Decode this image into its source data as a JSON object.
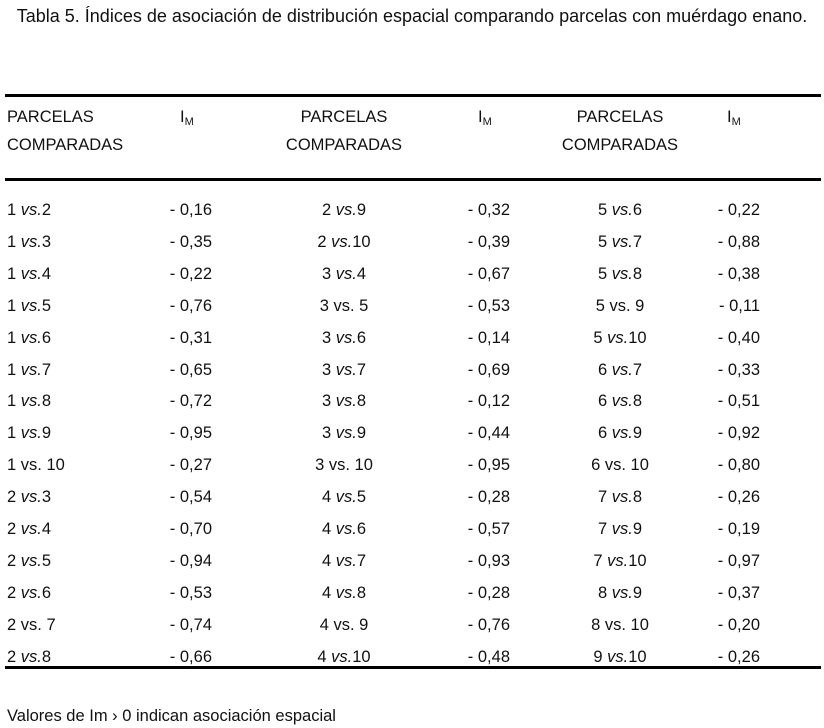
{
  "title": "Tabla 5. Índices de asociación de distribución espacial comparando parcelas con muérdago enano.",
  "headers": {
    "pairs_line1": "PARCELAS",
    "pairs_line2": "COMPARADAS",
    "index_main": "I",
    "index_sub": "M"
  },
  "groups": [
    [
      {
        "a": "1 ",
        "vs": "vs.",
        "b": "2",
        "italic": true,
        "im": "- 0,16"
      },
      {
        "a": "1 ",
        "vs": "vs.",
        "b": "3",
        "italic": true,
        "im": "- 0,35"
      },
      {
        "a": "1 ",
        "vs": "vs.",
        "b": "4",
        "italic": true,
        "im": "- 0,22"
      },
      {
        "a": "1 ",
        "vs": "vs.",
        "b": "5",
        "italic": true,
        "im": "- 0,76"
      },
      {
        "a": "1 ",
        "vs": "vs.",
        "b": "6",
        "italic": true,
        "im": "- 0,31"
      },
      {
        "a": "1 ",
        "vs": "vs.",
        "b": "7",
        "italic": true,
        "im": "- 0,65"
      },
      {
        "a": "1 ",
        "vs": "vs.",
        "b": "8",
        "italic": true,
        "im": "- 0,72"
      },
      {
        "a": "1 ",
        "vs": "vs.",
        "b": "9",
        "italic": true,
        "im": "- 0,95"
      },
      {
        "a": "1 ",
        "vs": "vs. ",
        "b": "10",
        "italic": false,
        "im": "- 0,27"
      },
      {
        "a": "2 ",
        "vs": "vs.",
        "b": "3",
        "italic": true,
        "im": "- 0,54"
      },
      {
        "a": "2 ",
        "vs": "vs.",
        "b": "4",
        "italic": true,
        "im": "- 0,70"
      },
      {
        "a": "2 ",
        "vs": "vs.",
        "b": "5",
        "italic": true,
        "im": "- 0,94"
      },
      {
        "a": "2 ",
        "vs": "vs.",
        "b": "6",
        "italic": true,
        "im": "- 0,53"
      },
      {
        "a": "2 ",
        "vs": "vs. ",
        "b": "7",
        "italic": false,
        "im": "- 0,74"
      },
      {
        "a": "2 ",
        "vs": "vs.",
        "b": "8",
        "italic": true,
        "im": "- 0,66"
      }
    ],
    [
      {
        "a": "2 ",
        "vs": "vs.",
        "b": "9",
        "italic": true,
        "im": "- 0,32"
      },
      {
        "a": "2 ",
        "vs": "vs.",
        "b": "10",
        "italic": true,
        "im": "- 0,39"
      },
      {
        "a": "3 ",
        "vs": "vs.",
        "b": "4",
        "italic": true,
        "im": "- 0,67"
      },
      {
        "a": "3 ",
        "vs": "vs. ",
        "b": "5",
        "italic": false,
        "im": "- 0,53"
      },
      {
        "a": "3 ",
        "vs": "vs.",
        "b": "6",
        "italic": true,
        "im": "- 0,14"
      },
      {
        "a": "3 ",
        "vs": "vs.",
        "b": "7",
        "italic": true,
        "im": "- 0,69"
      },
      {
        "a": "3 ",
        "vs": "vs.",
        "b": "8",
        "italic": true,
        "im": "- 0,12"
      },
      {
        "a": "3 ",
        "vs": "vs.",
        "b": "9",
        "italic": true,
        "im": "- 0,44"
      },
      {
        "a": "3 ",
        "vs": "vs. ",
        "b": "10",
        "italic": false,
        "im": "- 0,95"
      },
      {
        "a": "4 ",
        "vs": "vs.",
        "b": "5",
        "italic": true,
        "im": "- 0,28"
      },
      {
        "a": "4 ",
        "vs": "vs.",
        "b": "6",
        "italic": true,
        "im": "- 0,57"
      },
      {
        "a": "4 ",
        "vs": "vs.",
        "b": "7",
        "italic": true,
        "im": "- 0,93"
      },
      {
        "a": "4 ",
        "vs": "vs.",
        "b": "8",
        "italic": true,
        "im": "- 0,28"
      },
      {
        "a": "4 ",
        "vs": "vs. ",
        "b": "9",
        "italic": false,
        "im": "- 0,76"
      },
      {
        "a": "4 ",
        "vs": "vs.",
        "b": "10",
        "italic": true,
        "im": "- 0,48"
      }
    ],
    [
      {
        "a": "5 ",
        "vs": "vs.",
        "b": "6",
        "italic": true,
        "im": "- 0,22"
      },
      {
        "a": "5 ",
        "vs": "vs.",
        "b": "7",
        "italic": true,
        "im": "- 0,88"
      },
      {
        "a": "5 ",
        "vs": "vs.",
        "b": "8",
        "italic": true,
        "im": "- 0,38"
      },
      {
        "a": "5 ",
        "vs": "vs. ",
        "b": "9",
        "italic": false,
        "im": "- 0,11"
      },
      {
        "a": "5 ",
        "vs": "vs.",
        "b": "10",
        "italic": true,
        "im": "- 0,40"
      },
      {
        "a": "6 ",
        "vs": "vs.",
        "b": "7",
        "italic": true,
        "im": "- 0,33"
      },
      {
        "a": "6 ",
        "vs": "vs.",
        "b": "8",
        "italic": true,
        "im": "- 0,51"
      },
      {
        "a": "6 ",
        "vs": "vs.",
        "b": "9",
        "italic": true,
        "im": "- 0,92"
      },
      {
        "a": "6 ",
        "vs": "vs. ",
        "b": "10",
        "italic": false,
        "im": "- 0,80"
      },
      {
        "a": "7 ",
        "vs": "vs.",
        "b": "8",
        "italic": true,
        "im": "- 0,26"
      },
      {
        "a": "7 ",
        "vs": "vs.",
        "b": "9",
        "italic": true,
        "im": "- 0,19"
      },
      {
        "a": "7 ",
        "vs": "vs.",
        "b": "10",
        "italic": true,
        "im": "- 0,97"
      },
      {
        "a": "8 ",
        "vs": "vs.",
        "b": "9",
        "italic": true,
        "im": "- 0,37"
      },
      {
        "a": "8 ",
        "vs": "vs. ",
        "b": "10",
        "italic": false,
        "im": "- 0,20"
      },
      {
        "a": "9 ",
        "vs": "vs.",
        "b": "10",
        "italic": true,
        "im": "- 0,26"
      }
    ]
  ],
  "footnote": "Valores de Im › 0 indican asociación espacial"
}
